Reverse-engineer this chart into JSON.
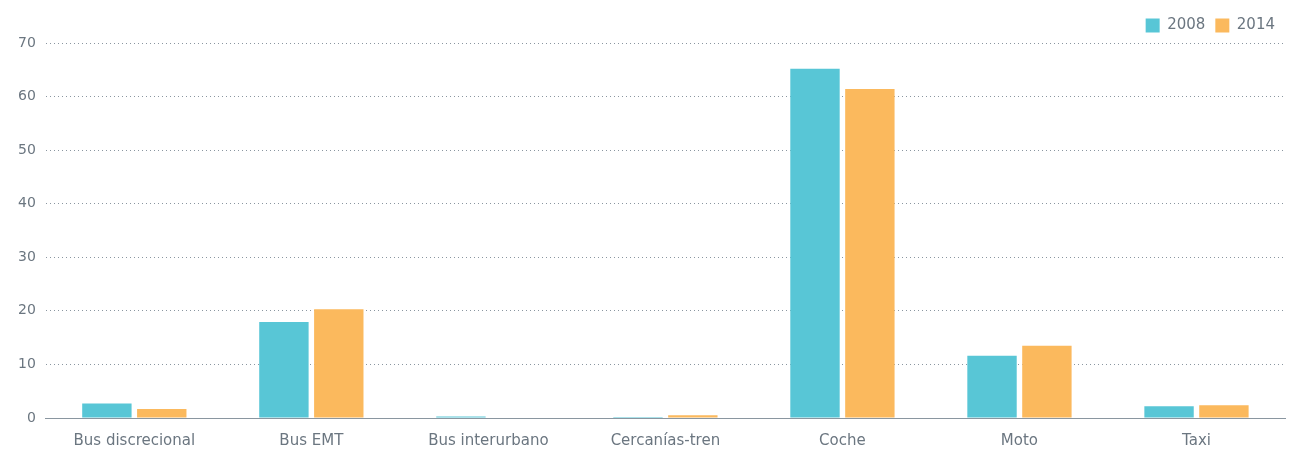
{
  "chart_data": {
    "type": "bar",
    "categories": [
      "Bus discrecional",
      "Bus EMT",
      "Bus interurbano",
      "Cercanías-tren",
      "Coche",
      "Moto",
      "Taxi"
    ],
    "series": [
      {
        "name": "2008",
        "color": "#58c6d6",
        "values": [
          2.7,
          17.9,
          0.3,
          0.2,
          65.2,
          11.6,
          2.2
        ]
      },
      {
        "name": "2014",
        "color": "#fbb95d",
        "values": [
          1.7,
          20.3,
          0,
          0.5,
          61.4,
          13.5,
          2.4
        ]
      }
    ],
    "ylim": [
      0,
      70
    ],
    "yticks": [
      0,
      10,
      20,
      30,
      40,
      50,
      60,
      70
    ],
    "grid": "y",
    "legend": "top right"
  }
}
